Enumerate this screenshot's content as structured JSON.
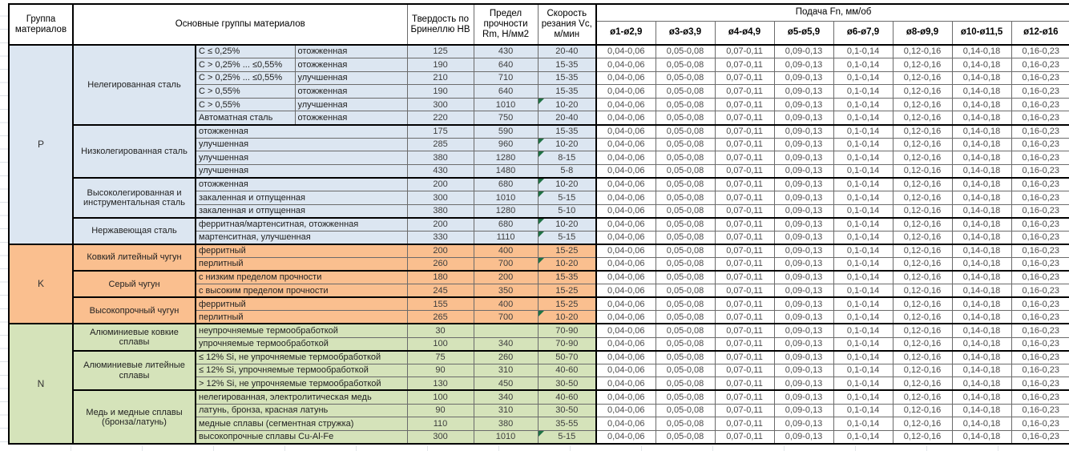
{
  "table": {
    "headers": {
      "group": "Группа материалов",
      "materials": "Основные группы материалов",
      "hardness": "Твердость по Бринеллю НВ",
      "strength": "Предел прочности Rm, Н/мм2",
      "speed": "Скорость резания Vc, м/мин",
      "feed": "Подача Fn, мм/об",
      "diameters": [
        "ø1-ø2,9",
        "ø3-ø3,9",
        "ø4-ø4,9",
        "ø5-ø5,9",
        "ø6-ø7,9",
        "ø8-ø9,9",
        "ø10-ø11,5",
        "ø12-ø16"
      ]
    },
    "feed_values": [
      "0,04-0,06",
      "0,05-0,08",
      "0,07-0,11",
      "0,09-0,13",
      "0,1-0,14",
      "0,12-0,16",
      "0,14-0,18",
      "0,16-0,23"
    ],
    "flag_color": "#1f7244",
    "sections": [
      {
        "code": "P",
        "color": "#dce6f1",
        "groups": [
          {
            "name": "Нелегированная сталь",
            "rows": [
              {
                "c": "C ≤ 0,25%",
                "treatment": "отожженная",
                "hb": "125",
                "rm": "430",
                "vc": "20-40",
                "flag": false
              },
              {
                "c": "C > 0,25% ... ≤0,55%",
                "treatment": "отожженная",
                "hb": "190",
                "rm": "640",
                "vc": "15-35",
                "flag": false
              },
              {
                "c": "C > 0,25% ... ≤0,55%",
                "treatment": "улучшенная",
                "hb": "210",
                "rm": "710",
                "vc": "15-35",
                "flag": false
              },
              {
                "c": "C > 0,55%",
                "treatment": "отожженная",
                "hb": "190",
                "rm": "640",
                "vc": "15-35",
                "flag": false
              },
              {
                "c": "C > 0,55%",
                "treatment": "улучшенная",
                "hb": "300",
                "rm": "1010",
                "vc": "10-20",
                "flag": true
              },
              {
                "c": "Автоматная сталь",
                "treatment": "отожженная",
                "hb": "220",
                "rm": "750",
                "vc": "20-40",
                "flag": false
              }
            ]
          },
          {
            "name": "Низколегированная сталь",
            "rows": [
              {
                "desc": "отожженная",
                "hb": "175",
                "rm": "590",
                "vc": "15-35",
                "flag": false
              },
              {
                "desc": "улучшенная",
                "hb": "285",
                "rm": "960",
                "vc": "10-20",
                "flag": true
              },
              {
                "desc": "улучшенная",
                "hb": "380",
                "rm": "1280",
                "vc": "8-15",
                "flag": true
              },
              {
                "desc": "улучшенная",
                "hb": "430",
                "rm": "1480",
                "vc": "5-8",
                "flag": false
              }
            ]
          },
          {
            "name": "Высоколегированная и инструментальная сталь",
            "rows": [
              {
                "desc": "отожженная",
                "hb": "200",
                "rm": "680",
                "vc": "10-20",
                "flag": true
              },
              {
                "desc": "закаленная и отпущенная",
                "hb": "300",
                "rm": "1010",
                "vc": "5-15",
                "flag": true
              },
              {
                "desc": "закаленная и отпущенная",
                "hb": "380",
                "rm": "1280",
                "vc": "5-10",
                "flag": false
              }
            ]
          },
          {
            "name": "Нержавеющая сталь",
            "rows": [
              {
                "desc": "ферритная/мартенситная, отожженная",
                "hb": "200",
                "rm": "680",
                "vc": "10-20",
                "flag": true
              },
              {
                "desc": "мартенситная, улучшенная",
                "hb": "330",
                "rm": "1110",
                "vc": "5-15",
                "flag": true
              }
            ]
          }
        ]
      },
      {
        "code": "K",
        "color": "#fabf8f",
        "groups": [
          {
            "name": "Ковкий литейный чугун",
            "rows": [
              {
                "desc": "ферритный",
                "hb": "200",
                "rm": "400",
                "vc": "15-25",
                "flag": false
              },
              {
                "desc": "перлитный",
                "hb": "260",
                "rm": "700",
                "vc": "10-20",
                "flag": true
              }
            ]
          },
          {
            "name": "Серый чугун",
            "rows": [
              {
                "desc": "с низким пределом прочности",
                "hb": "180",
                "rm": "200",
                "vc": "15-35",
                "flag": false
              },
              {
                "desc": "с высоким пределом прочности",
                "hb": "245",
                "rm": "350",
                "vc": "15-25",
                "flag": false
              }
            ]
          },
          {
            "name": "Высокопрочный чугун",
            "rows": [
              {
                "desc": "ферритный",
                "hb": "155",
                "rm": "400",
                "vc": "15-25",
                "flag": false
              },
              {
                "desc": "перлитный",
                "hb": "265",
                "rm": "700",
                "vc": "10-20",
                "flag": true
              }
            ]
          }
        ]
      },
      {
        "code": "N",
        "color": "#d5e3ba",
        "groups": [
          {
            "name": "Алюминиевые ковкие сплавы",
            "rows": [
              {
                "desc": "неупрочняемые термообработкой",
                "hb": "30",
                "rm": "",
                "vc": "70-90",
                "flag": false
              },
              {
                "desc": "упрочняемые термообработкой",
                "hb": "100",
                "rm": "340",
                "vc": "70-90",
                "flag": false
              }
            ]
          },
          {
            "name": "Алюминиевые литейные сплавы",
            "rows": [
              {
                "desc": "≤ 12% Si, не упрочняемые термообработкой",
                "hb": "75",
                "rm": "260",
                "vc": "50-70",
                "flag": false
              },
              {
                "desc": "≤ 12% Si, упрочняемые термообработкой",
                "hb": "90",
                "rm": "310",
                "vc": "40-60",
                "flag": false
              },
              {
                "desc": "> 12% Si, не упрочняемые термообработкой",
                "hb": "130",
                "rm": "450",
                "vc": "30-50",
                "flag": false
              }
            ]
          },
          {
            "name": "Медь и медные сплавы (бронза/латунь)",
            "rows": [
              {
                "desc": "нелегированная, электролитическая медь",
                "hb": "100",
                "rm": "340",
                "vc": "40-60",
                "flag": false
              },
              {
                "desc": "латунь, бронза, красная латунь",
                "hb": "90",
                "rm": "310",
                "vc": "30-50",
                "flag": false
              },
              {
                "desc": "медные сплавы (сегментная стружка)",
                "hb": "110",
                "rm": "380",
                "vc": "35-55",
                "flag": false
              },
              {
                "desc": "высокопрочные сплавы Cu-Al-Fe",
                "hb": "300",
                "rm": "1010",
                "vc": "5-15",
                "flag": true
              }
            ]
          }
        ]
      }
    ]
  }
}
